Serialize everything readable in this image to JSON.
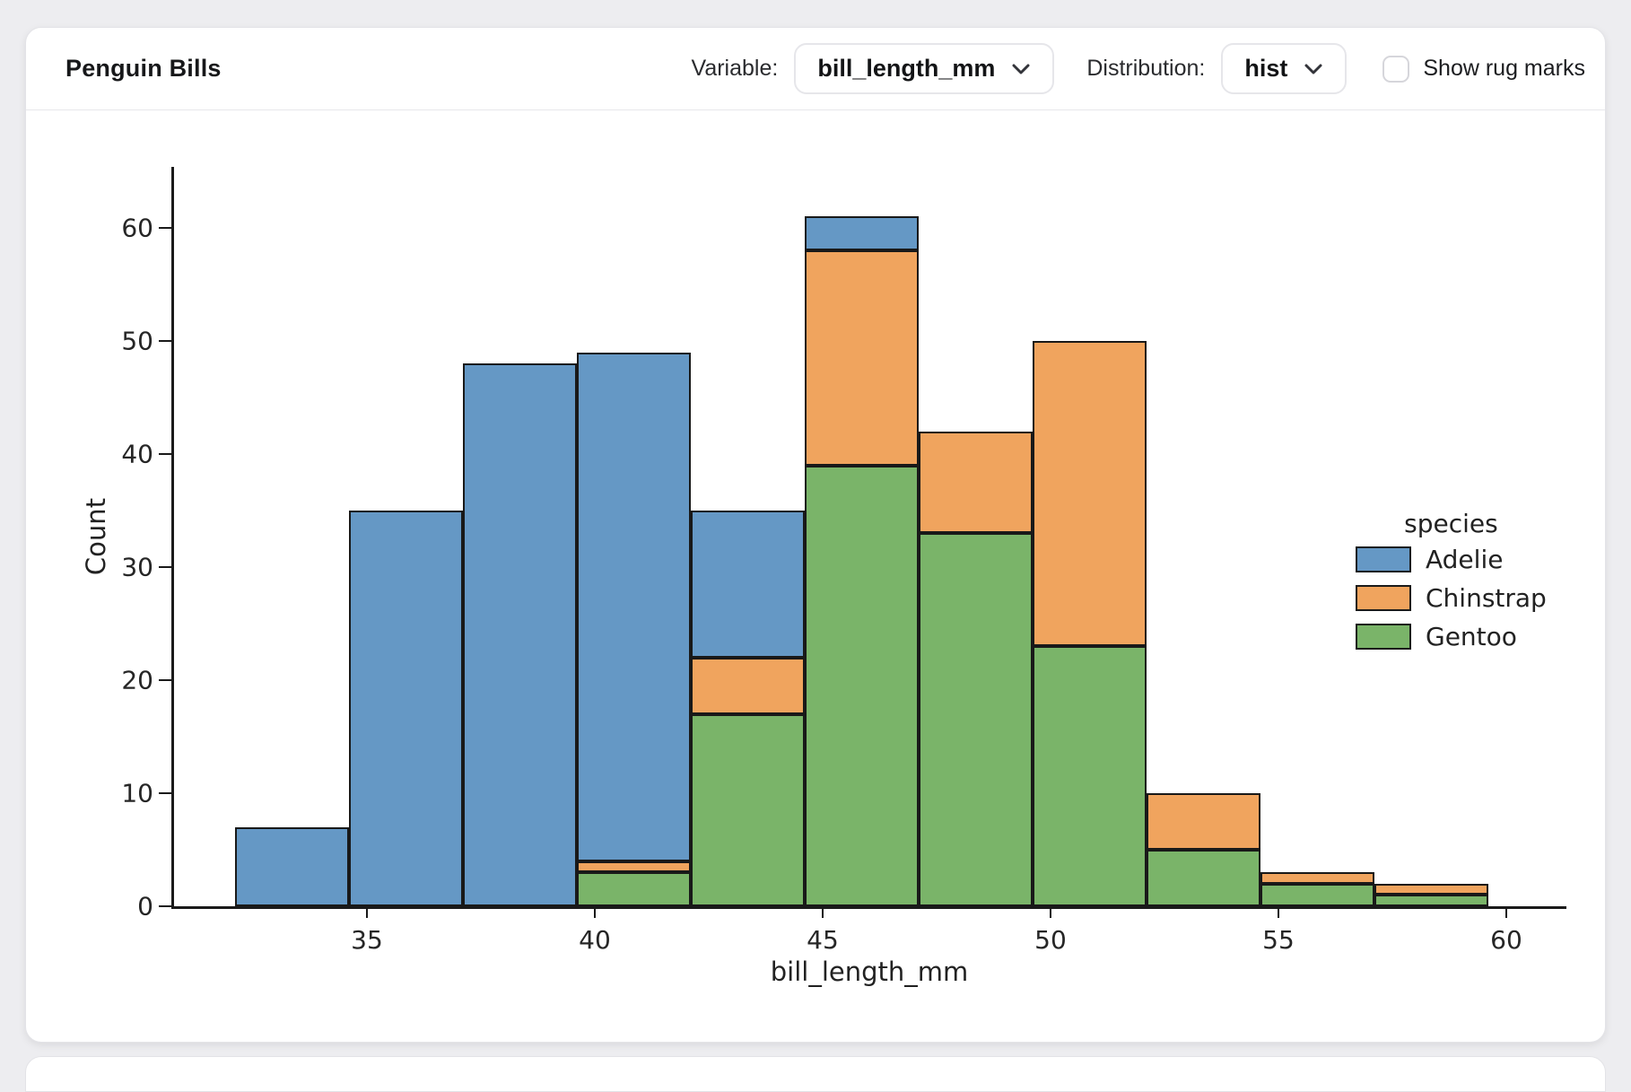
{
  "header": {
    "title": "Penguin Bills",
    "variable_label": "Variable:",
    "variable_value": "bill_length_mm",
    "distribution_label": "Distribution:",
    "distribution_value": "hist",
    "rug_label": "Show rug marks",
    "rug_checked": false
  },
  "chart_data": {
    "type": "bar",
    "subtype": "stacked-histogram",
    "title": "",
    "xlabel": "bill_length_mm",
    "ylabel": "Count",
    "x_ticks": [
      35,
      40,
      45,
      50,
      55,
      60
    ],
    "y_ticks": [
      0,
      10,
      20,
      30,
      40,
      50,
      60
    ],
    "xlim": [
      30.75,
      61.3
    ],
    "ylim": [
      0,
      65
    ],
    "grid": false,
    "bin_edges": [
      32.1,
      34.6,
      37.1,
      39.6,
      42.1,
      44.6,
      47.1,
      49.6,
      52.1,
      54.6,
      57.1,
      59.6
    ],
    "stack_order_bottom_to_top": [
      "Gentoo",
      "Chinstrap",
      "Adelie"
    ],
    "series": [
      {
        "name": "Adelie",
        "color": "#6598c5",
        "values": [
          7,
          35,
          48,
          45,
          13,
          3,
          0,
          0,
          0,
          0,
          0
        ]
      },
      {
        "name": "Chinstrap",
        "color": "#f0a45e",
        "values": [
          0,
          0,
          0,
          1,
          5,
          19,
          9,
          27,
          5,
          1,
          1
        ]
      },
      {
        "name": "Gentoo",
        "color": "#7ab469",
        "values": [
          0,
          0,
          0,
          3,
          17,
          39,
          33,
          23,
          5,
          2,
          1
        ]
      }
    ],
    "bin_totals": [
      7,
      35,
      48,
      49,
      35,
      61,
      42,
      50,
      10,
      3,
      2
    ],
    "legend": {
      "title": "species",
      "entries": [
        "Adelie",
        "Chinstrap",
        "Gentoo"
      ],
      "position": "right"
    },
    "edge_color": "#191919"
  }
}
